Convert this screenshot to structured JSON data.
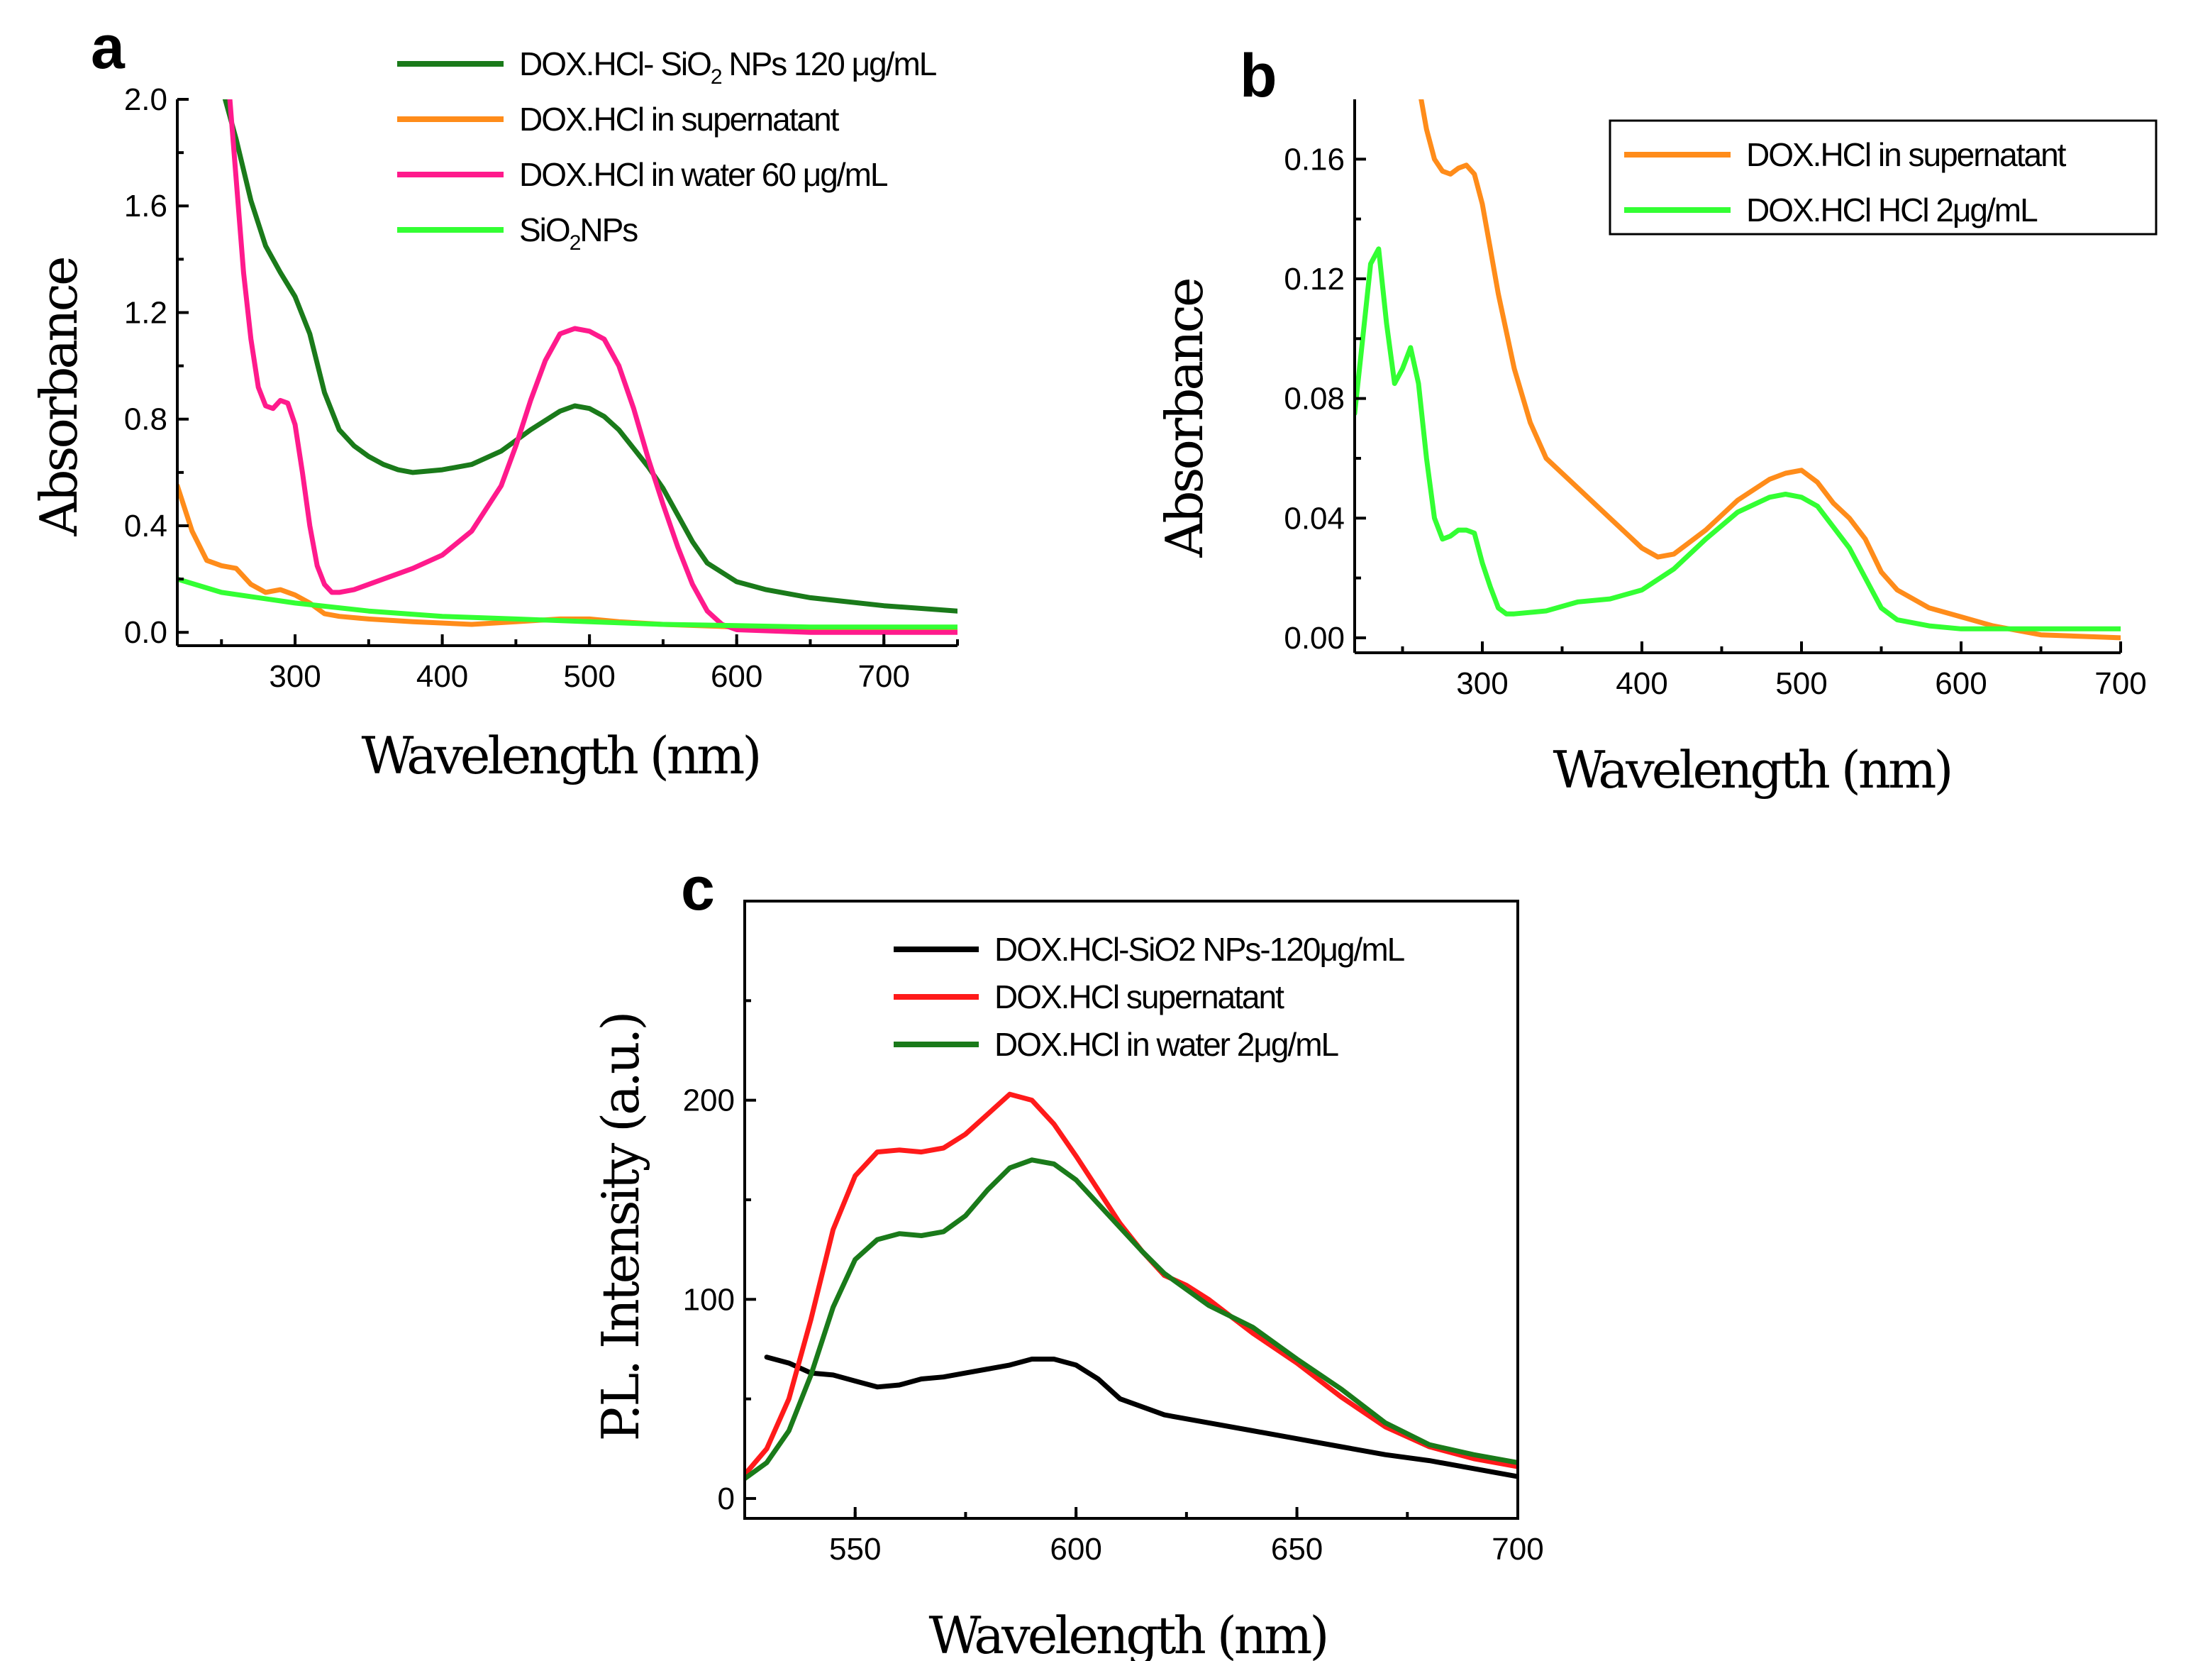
{
  "figure": {
    "colors": {
      "dark_green": "#1a7a1a",
      "orange": "#ff8c1a",
      "magenta": "#ff1a8c",
      "bright_green": "#33ff33",
      "red": "#ff1a1a",
      "black": "#000000"
    }
  },
  "chart_data": [
    {
      "panel": "a",
      "type": "line",
      "xlabel": "Wavelength (nm)",
      "ylabel": "Absorbance",
      "xlim": [
        220,
        750
      ],
      "ylim": [
        -0.05,
        2.0
      ],
      "xticks": [
        300,
        400,
        500,
        600,
        700
      ],
      "yticks": [
        0.0,
        0.4,
        0.8,
        1.2,
        1.6,
        2.0
      ],
      "ytick_labels": [
        "0.0",
        "0.4",
        "0.8",
        "1.2",
        "1.6",
        "2.0"
      ],
      "legend_position": "top-right",
      "series": [
        {
          "name": "DOX.HCl- SiO₂ NPs 120 μg/mL",
          "legend_pre": "DOX.HCl- SiO",
          "legend_sub": "2",
          "legend_post": " NPs 120 μg/mL",
          "color": "#1a7a1a",
          "x": [
            250,
            260,
            270,
            280,
            290,
            300,
            310,
            320,
            330,
            340,
            350,
            360,
            370,
            380,
            400,
            420,
            440,
            460,
            480,
            490,
            500,
            510,
            520,
            530,
            540,
            550,
            560,
            570,
            580,
            600,
            620,
            650,
            700,
            750
          ],
          "y": [
            2.05,
            1.85,
            1.62,
            1.45,
            1.35,
            1.26,
            1.12,
            0.9,
            0.76,
            0.7,
            0.66,
            0.63,
            0.61,
            0.6,
            0.61,
            0.63,
            0.68,
            0.76,
            0.83,
            0.85,
            0.84,
            0.81,
            0.76,
            0.69,
            0.62,
            0.54,
            0.44,
            0.34,
            0.26,
            0.19,
            0.16,
            0.13,
            0.1,
            0.08
          ]
        },
        {
          "name": "DOX.HCl in supernatant",
          "legend_pre": "DOX.HCl in supernatant",
          "legend_sub": "",
          "legend_post": "",
          "color": "#ff8c1a",
          "x": [
            220,
            230,
            240,
            250,
            260,
            270,
            280,
            290,
            300,
            310,
            320,
            330,
            350,
            380,
            420,
            450,
            480,
            500,
            520,
            550,
            600,
            650,
            700,
            750
          ],
          "y": [
            0.55,
            0.38,
            0.27,
            0.25,
            0.24,
            0.18,
            0.15,
            0.16,
            0.14,
            0.11,
            0.07,
            0.06,
            0.05,
            0.04,
            0.03,
            0.04,
            0.05,
            0.05,
            0.04,
            0.03,
            0.02,
            0.01,
            0.005,
            0.005
          ]
        },
        {
          "name": "DOX.HCl in water 60 μg/mL",
          "legend_pre": "DOX.HCl in water 60 μg/mL",
          "legend_sub": "",
          "legend_post": "",
          "color": "#ff1a8c",
          "x": [
            255,
            260,
            265,
            270,
            275,
            280,
            285,
            290,
            295,
            300,
            305,
            310,
            315,
            320,
            325,
            330,
            340,
            360,
            380,
            400,
            420,
            440,
            450,
            460,
            470,
            480,
            490,
            500,
            510,
            520,
            530,
            540,
            550,
            560,
            570,
            580,
            590,
            600,
            650,
            700,
            750
          ],
          "y": [
            2.05,
            1.7,
            1.35,
            1.1,
            0.92,
            0.85,
            0.84,
            0.87,
            0.86,
            0.78,
            0.6,
            0.4,
            0.25,
            0.18,
            0.15,
            0.15,
            0.16,
            0.2,
            0.24,
            0.29,
            0.38,
            0.55,
            0.7,
            0.87,
            1.02,
            1.12,
            1.14,
            1.13,
            1.1,
            1.0,
            0.84,
            0.65,
            0.48,
            0.32,
            0.18,
            0.08,
            0.03,
            0.01,
            0.0,
            0.0,
            0.0
          ]
        },
        {
          "name": "SiO₂NPs",
          "legend_pre": "SiO",
          "legend_sub": "2",
          "legend_post": "NPs",
          "color": "#33ff33",
          "x": [
            220,
            250,
            300,
            350,
            400,
            450,
            500,
            550,
            600,
            650,
            700,
            750
          ],
          "y": [
            0.2,
            0.15,
            0.11,
            0.08,
            0.06,
            0.05,
            0.04,
            0.03,
            0.025,
            0.02,
            0.02,
            0.02
          ]
        }
      ]
    },
    {
      "panel": "b",
      "type": "line",
      "xlabel": "Wavelength (nm)",
      "ylabel": "Absorbance",
      "xlim": [
        220,
        700
      ],
      "ylim": [
        -0.005,
        0.18
      ],
      "xticks": [
        300,
        400,
        500,
        600,
        700
      ],
      "yticks": [
        0.0,
        0.04,
        0.08,
        0.12,
        0.16
      ],
      "ytick_labels": [
        "0.00",
        "0.04",
        "0.08",
        "0.12",
        "0.16"
      ],
      "legend_position": "top-right",
      "series": [
        {
          "name": "DOX.HCl in supernatant",
          "legend_pre": "DOX.HCl in supernatant",
          "legend_sub": "",
          "legend_post": "",
          "color": "#ff8c1a",
          "x": [
            260,
            265,
            270,
            275,
            280,
            285,
            290,
            295,
            300,
            305,
            310,
            320,
            330,
            340,
            360,
            380,
            400,
            410,
            420,
            440,
            460,
            480,
            490,
            500,
            510,
            520,
            530,
            540,
            550,
            560,
            580,
            600,
            620,
            650,
            700
          ],
          "y": [
            0.185,
            0.17,
            0.16,
            0.156,
            0.155,
            0.157,
            0.158,
            0.155,
            0.145,
            0.13,
            0.115,
            0.09,
            0.072,
            0.06,
            0.05,
            0.04,
            0.03,
            0.027,
            0.028,
            0.036,
            0.046,
            0.053,
            0.055,
            0.056,
            0.052,
            0.045,
            0.04,
            0.033,
            0.022,
            0.016,
            0.01,
            0.007,
            0.004,
            0.001,
            0.0
          ]
        },
        {
          "name": "DOX.HCl HCl 2μg/mL",
          "legend_pre": "DOX.HCl HCl 2μg/mL",
          "legend_sub": "",
          "legend_post": "",
          "color": "#33ff33",
          "x": [
            220,
            225,
            230,
            235,
            240,
            245,
            250,
            255,
            260,
            265,
            270,
            275,
            280,
            285,
            290,
            295,
            300,
            305,
            310,
            315,
            320,
            340,
            360,
            380,
            400,
            420,
            440,
            460,
            480,
            490,
            500,
            510,
            520,
            530,
            540,
            550,
            560,
            580,
            600,
            650,
            700
          ],
          "y": [
            0.075,
            0.1,
            0.125,
            0.13,
            0.105,
            0.085,
            0.09,
            0.097,
            0.085,
            0.06,
            0.04,
            0.033,
            0.034,
            0.036,
            0.036,
            0.035,
            0.025,
            0.017,
            0.01,
            0.008,
            0.008,
            0.009,
            0.012,
            0.013,
            0.016,
            0.023,
            0.033,
            0.042,
            0.047,
            0.048,
            0.047,
            0.044,
            0.037,
            0.03,
            0.02,
            0.01,
            0.006,
            0.004,
            0.003,
            0.003,
            0.003
          ]
        }
      ]
    },
    {
      "panel": "c",
      "type": "line",
      "xlabel": "Wavelength (nm)",
      "ylabel": "P.L. Intensity (a.u.)",
      "xlim": [
        525,
        700
      ],
      "ylim": [
        -10,
        300
      ],
      "xticks": [
        550,
        600,
        650,
        700
      ],
      "yticks": [
        0,
        100,
        200
      ],
      "ytick_labels": [
        "0",
        "100",
        "200"
      ],
      "legend_position": "top-center",
      "series": [
        {
          "name": "DOX.HCl-SiO2 NPs-120μg/mL",
          "legend_pre": "DOX.HCl-SiO2 NPs-120μg/mL",
          "legend_sub": "",
          "legend_post": "",
          "color": "#000000",
          "x": [
            530,
            535,
            540,
            545,
            550,
            555,
            560,
            565,
            570,
            575,
            580,
            585,
            590,
            595,
            600,
            605,
            610,
            615,
            620,
            630,
            640,
            650,
            660,
            670,
            680,
            690,
            700
          ],
          "y": [
            71,
            68,
            63,
            62,
            59,
            56,
            57,
            60,
            61,
            63,
            65,
            67,
            70,
            70,
            67,
            60,
            50,
            46,
            42,
            38,
            34,
            30,
            26,
            22,
            19,
            15,
            11
          ]
        },
        {
          "name": "DOX.HCl supernatant",
          "legend_pre": "DOX.HCl supernatant",
          "legend_sub": "",
          "legend_post": "",
          "color": "#ff1a1a",
          "x": [
            525,
            530,
            535,
            540,
            545,
            550,
            555,
            560,
            565,
            570,
            575,
            580,
            585,
            590,
            595,
            600,
            605,
            610,
            615,
            620,
            625,
            630,
            640,
            650,
            660,
            670,
            680,
            690,
            700
          ],
          "y": [
            12,
            25,
            50,
            90,
            135,
            162,
            174,
            175,
            174,
            176,
            183,
            193,
            203,
            200,
            188,
            172,
            155,
            138,
            124,
            112,
            107,
            100,
            83,
            68,
            51,
            36,
            26,
            20,
            16
          ]
        },
        {
          "name": "DOX.HCl in water 2μg/mL",
          "legend_pre": "DOX.HCl in water 2μg/mL",
          "legend_sub": "",
          "legend_post": "",
          "color": "#1a7a1a",
          "x": [
            525,
            530,
            535,
            540,
            545,
            550,
            555,
            560,
            565,
            570,
            575,
            580,
            585,
            590,
            595,
            600,
            605,
            610,
            615,
            620,
            630,
            640,
            650,
            660,
            670,
            680,
            690,
            700
          ],
          "y": [
            10,
            18,
            34,
            62,
            96,
            120,
            130,
            133,
            132,
            134,
            142,
            155,
            166,
            170,
            168,
            160,
            148,
            136,
            124,
            113,
            97,
            86,
            70,
            55,
            38,
            27,
            22,
            18
          ]
        }
      ]
    }
  ]
}
